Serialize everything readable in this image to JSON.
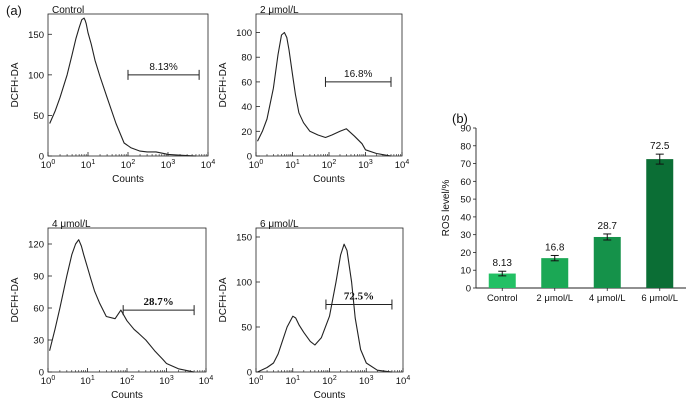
{
  "panel_labels": {
    "a": "(a)",
    "b": "(b)"
  },
  "chart_data": [
    {
      "type": "line",
      "panel": "(a)",
      "title": "Control",
      "xlabel": "Counts",
      "ylabel": "DCFH-DA",
      "xscale": "log",
      "xlim": [
        1,
        10000
      ],
      "ylim": [
        0,
        175
      ],
      "yticks": [
        0,
        50,
        100,
        150
      ],
      "gate": {
        "label": "8.13%",
        "x_range": [
          100,
          6000
        ],
        "y": 100
      },
      "x": [
        1.1,
        1.5,
        2,
        3,
        4,
        5,
        6,
        7,
        8,
        8.5,
        9,
        10,
        12,
        15,
        20,
        30,
        50,
        80,
        120,
        200,
        300,
        500,
        800,
        1000,
        2000,
        5000
      ],
      "values": [
        40,
        55,
        72,
        100,
        125,
        145,
        158,
        168,
        170,
        167,
        163,
        152,
        138,
        118,
        98,
        72,
        40,
        16,
        10,
        6,
        5,
        5,
        3,
        2,
        1,
        0
      ]
    },
    {
      "type": "line",
      "panel": "(a)",
      "title": "2 μmol/L",
      "xlabel": "Counts",
      "ylabel": "DCFH-DA",
      "xscale": "log",
      "xlim": [
        1,
        10000
      ],
      "ylim": [
        0,
        115
      ],
      "yticks": [
        0,
        20,
        40,
        60,
        80,
        100
      ],
      "gate": {
        "label": "16.8%",
        "x_range": [
          80,
          5000
        ],
        "y": 60
      },
      "x": [
        1.1,
        1.5,
        2,
        3,
        4,
        5,
        6,
        7,
        8,
        10,
        12,
        15,
        20,
        30,
        50,
        80,
        120,
        200,
        300,
        500,
        800,
        1000,
        2000,
        5000
      ],
      "values": [
        12,
        20,
        30,
        55,
        82,
        98,
        100,
        96,
        86,
        66,
        50,
        35,
        27,
        20,
        17,
        15,
        17,
        20,
        22,
        16,
        10,
        5,
        2,
        0
      ]
    },
    {
      "type": "line",
      "panel": "(a)",
      "title": "4 μmol/L",
      "xlabel": "Counts",
      "ylabel": "DCFH-DA",
      "xscale": "log",
      "xlim": [
        1,
        10000
      ],
      "ylim": [
        0,
        135
      ],
      "yticks": [
        0,
        30,
        60,
        90,
        120
      ],
      "gate": {
        "label": "28.7%",
        "x_range": [
          80,
          5000
        ],
        "y": 58
      },
      "x": [
        1.1,
        1.5,
        2,
        3,
        4,
        5,
        6,
        7,
        8,
        10,
        12,
        15,
        20,
        30,
        50,
        70,
        100,
        150,
        200,
        300,
        500,
        800,
        1000,
        2000,
        5000
      ],
      "values": [
        20,
        40,
        60,
        90,
        110,
        120,
        124,
        118,
        110,
        98,
        88,
        76,
        65,
        52,
        50,
        58,
        48,
        40,
        36,
        30,
        20,
        12,
        8,
        3,
        0
      ]
    },
    {
      "type": "line",
      "panel": "(a)",
      "title": "6 μmol/L",
      "xlabel": "Counts",
      "ylabel": "DCFH-DA",
      "xscale": "log",
      "xlim": [
        1,
        10000
      ],
      "ylim": [
        0,
        160
      ],
      "yticks": [
        0,
        50,
        100,
        150
      ],
      "gate": {
        "label": "72.5%",
        "x_range": [
          80,
          5000
        ],
        "y": 75
      },
      "x": [
        1.1,
        2,
        3,
        4,
        5,
        7,
        10,
        12,
        15,
        20,
        30,
        40,
        60,
        100,
        150,
        200,
        250,
        300,
        400,
        500,
        700,
        1000,
        2000,
        5000
      ],
      "values": [
        0,
        5,
        10,
        20,
        32,
        50,
        62,
        60,
        52,
        44,
        34,
        30,
        38,
        62,
        100,
        130,
        142,
        135,
        100,
        60,
        25,
        10,
        2,
        0
      ]
    },
    {
      "type": "bar",
      "panel": "(b)",
      "title": "",
      "xlabel": "",
      "ylabel": "ROS level/%",
      "ylim": [
        0,
        90
      ],
      "yticks": [
        0,
        10,
        20,
        30,
        40,
        50,
        60,
        70,
        80,
        90
      ],
      "categories": [
        "Control",
        "2 μmol/L",
        "4 μmol/L",
        "6 μmol/L"
      ],
      "values": [
        8.13,
        16.8,
        28.7,
        72.5
      ],
      "value_labels": [
        "8.13",
        "16.8",
        "28.7",
        "72.5"
      ],
      "errors": [
        1.3,
        1.5,
        1.7,
        2.8
      ],
      "colors": [
        "#22c064",
        "#1ba855",
        "#15924a",
        "#0b6e35"
      ]
    }
  ]
}
